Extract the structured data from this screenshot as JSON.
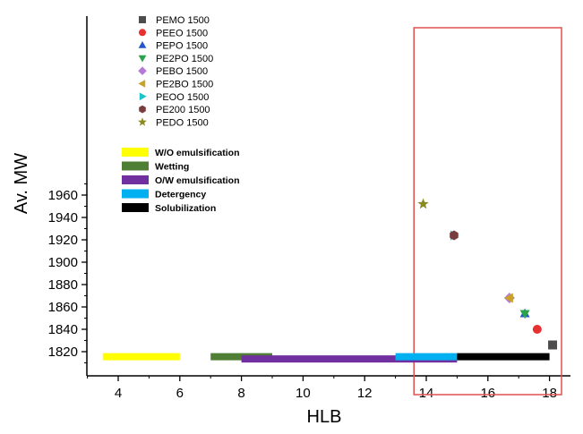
{
  "chart_data": {
    "type": "scatter",
    "title": "",
    "xlabel": "HLB",
    "ylabel": "Av. MW",
    "xlim": [
      3,
      19
    ],
    "ylim": [
      1810,
      1970
    ],
    "x_ticks": [
      4,
      6,
      8,
      10,
      12,
      14,
      16,
      18
    ],
    "y_ticks": [
      1820,
      1840,
      1860,
      1880,
      1900,
      1920,
      1940,
      1960
    ],
    "grid": false,
    "series": [
      {
        "name": "PEMO 1500",
        "marker": "square",
        "color": "#4d4d4d",
        "points": [
          [
            18.1,
            1826
          ]
        ]
      },
      {
        "name": "PEEO 1500",
        "marker": "circle",
        "color": "#e83030",
        "points": [
          [
            17.6,
            1840
          ]
        ]
      },
      {
        "name": "PEPO 1500",
        "marker": "triangle-up",
        "color": "#2457c8",
        "points": [
          [
            17.2,
            1854
          ]
        ]
      },
      {
        "name": "PE2PO 1500",
        "marker": "triangle-down",
        "color": "#2aa34a",
        "points": [
          [
            17.2,
            1854
          ]
        ]
      },
      {
        "name": "PEBO 1500",
        "marker": "diamond",
        "color": "#b57ad6",
        "points": [
          [
            16.7,
            1868
          ]
        ]
      },
      {
        "name": "PE2BO 1500",
        "marker": "triangle-left",
        "color": "#c9a227",
        "points": [
          [
            16.7,
            1868
          ]
        ]
      },
      {
        "name": "PEOO 1500",
        "marker": "triangle-right",
        "color": "#1ec2c9",
        "points": [
          [
            14.9,
            1924
          ]
        ]
      },
      {
        "name": "PE200 1500",
        "marker": "hexagon",
        "color": "#7a3d3d",
        "points": [
          [
            14.9,
            1924
          ]
        ]
      },
      {
        "name": "PEDO 1500",
        "marker": "star",
        "color": "#8a8a22",
        "points": [
          [
            13.9,
            1952
          ]
        ]
      }
    ],
    "hlb_ranges": [
      {
        "name": "W/O emulsification",
        "color": "#ffff00",
        "from": 3.5,
        "to": 6.0,
        "y": 1815.5
      },
      {
        "name": "Wetting",
        "color": "#4f7f34",
        "from": 7.0,
        "to": 9.0,
        "y": 1815.5
      },
      {
        "name": "O/W emulsification",
        "color": "#7030a0",
        "from": 8.0,
        "to": 15.0,
        "y": 1813.5
      },
      {
        "name": "Detergency",
        "color": "#00b0f0",
        "from": 13.0,
        "to": 15.0,
        "y": 1815.5
      },
      {
        "name": "Solubilization",
        "color": "#000000",
        "from": 15.0,
        "to": 18.0,
        "y": 1815.5
      }
    ],
    "highlight_box": {
      "color": "#e05050",
      "x_from": 13.6,
      "x_to": 19.3,
      "y_from": 1810,
      "y_to": 1965
    },
    "legend_markers": {
      "placement": "top-left"
    },
    "legend_ranges": {
      "placement": "middle-left"
    }
  }
}
